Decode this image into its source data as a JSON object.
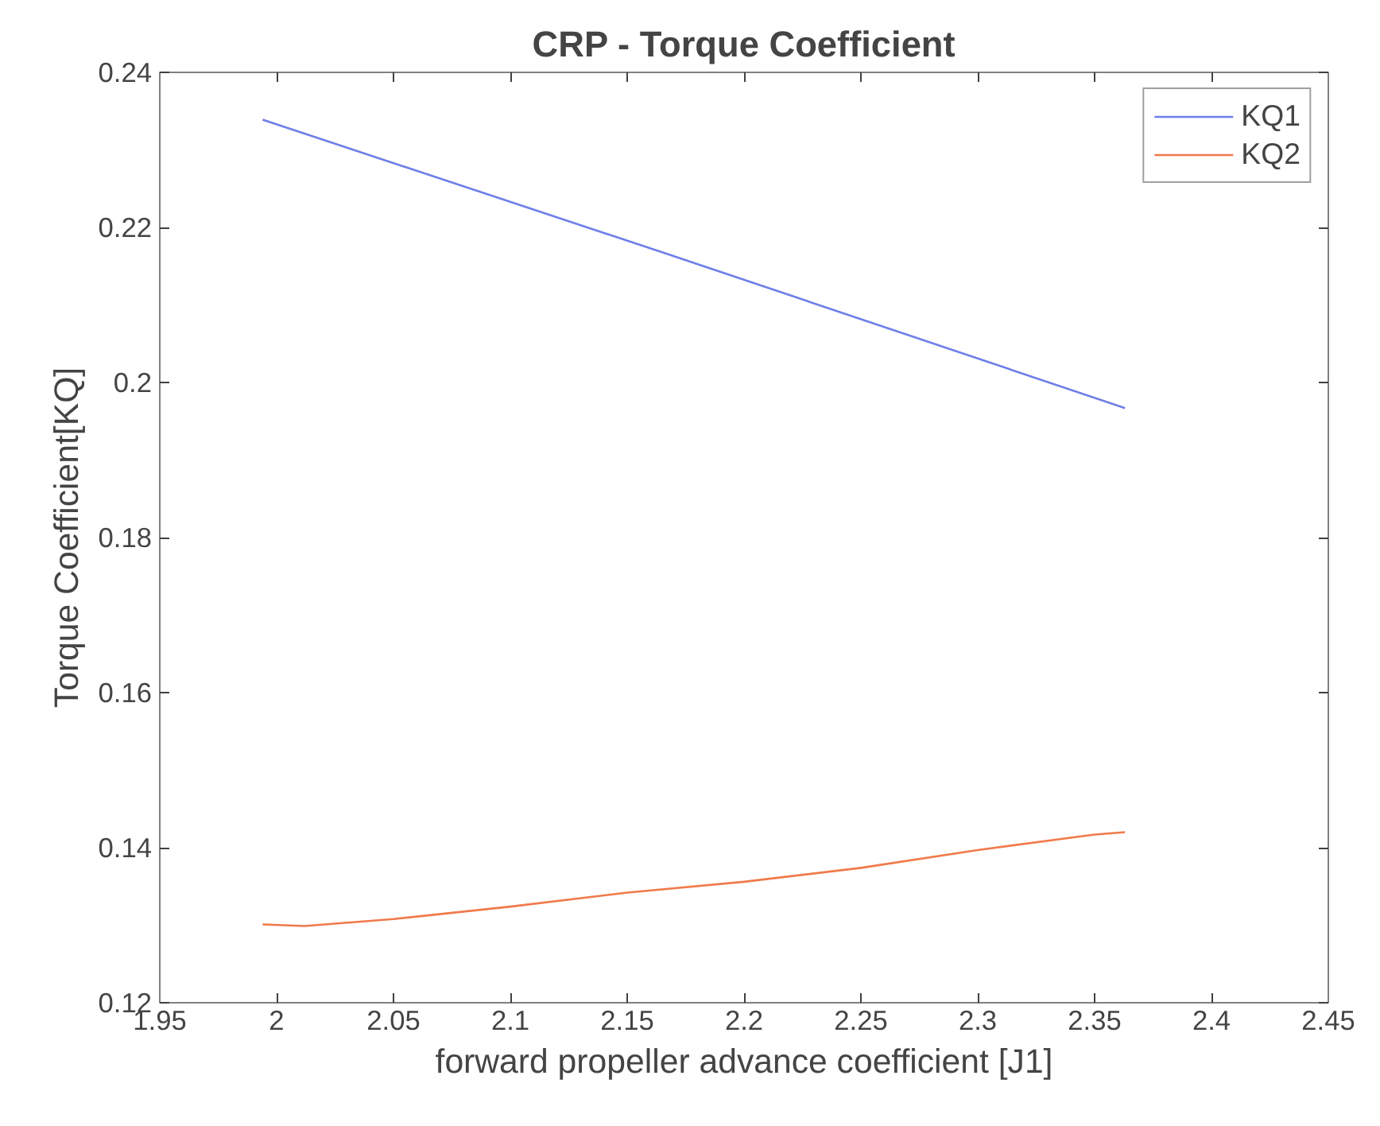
{
  "chart_data": {
    "type": "line",
    "title": "CRP - Torque Coefficient",
    "xlabel": "forward propeller advance coefficient [J1]",
    "ylabel": "Torque Coefficient[KQ]",
    "xlim": [
      1.95,
      2.45
    ],
    "ylim": [
      0.12,
      0.24
    ],
    "xticks": [
      1.95,
      2,
      2.05,
      2.1,
      2.15,
      2.2,
      2.25,
      2.3,
      2.35,
      2.4,
      2.45
    ],
    "yticks": [
      0.12,
      0.14,
      0.16,
      0.18,
      0.2,
      0.22,
      0.24
    ],
    "grid": false,
    "legend": "top right",
    "marker": "none",
    "line_style": "solid",
    "series": [
      {
        "name": "KQ1",
        "color": "#6e7ee8",
        "x": [
          1.994,
          2.166,
          2.363
        ],
        "values": [
          0.2339,
          0.2167,
          0.1967
        ]
      },
      {
        "name": "KQ2",
        "color": "#f07a4a",
        "x": [
          1.994,
          2.012,
          2.05,
          2.1,
          2.15,
          2.2,
          2.25,
          2.3,
          2.35,
          2.363
        ],
        "values": [
          0.1301,
          0.1299,
          0.1308,
          0.1324,
          0.1342,
          0.1356,
          0.1374,
          0.1397,
          0.1417,
          0.142
        ]
      }
    ]
  }
}
